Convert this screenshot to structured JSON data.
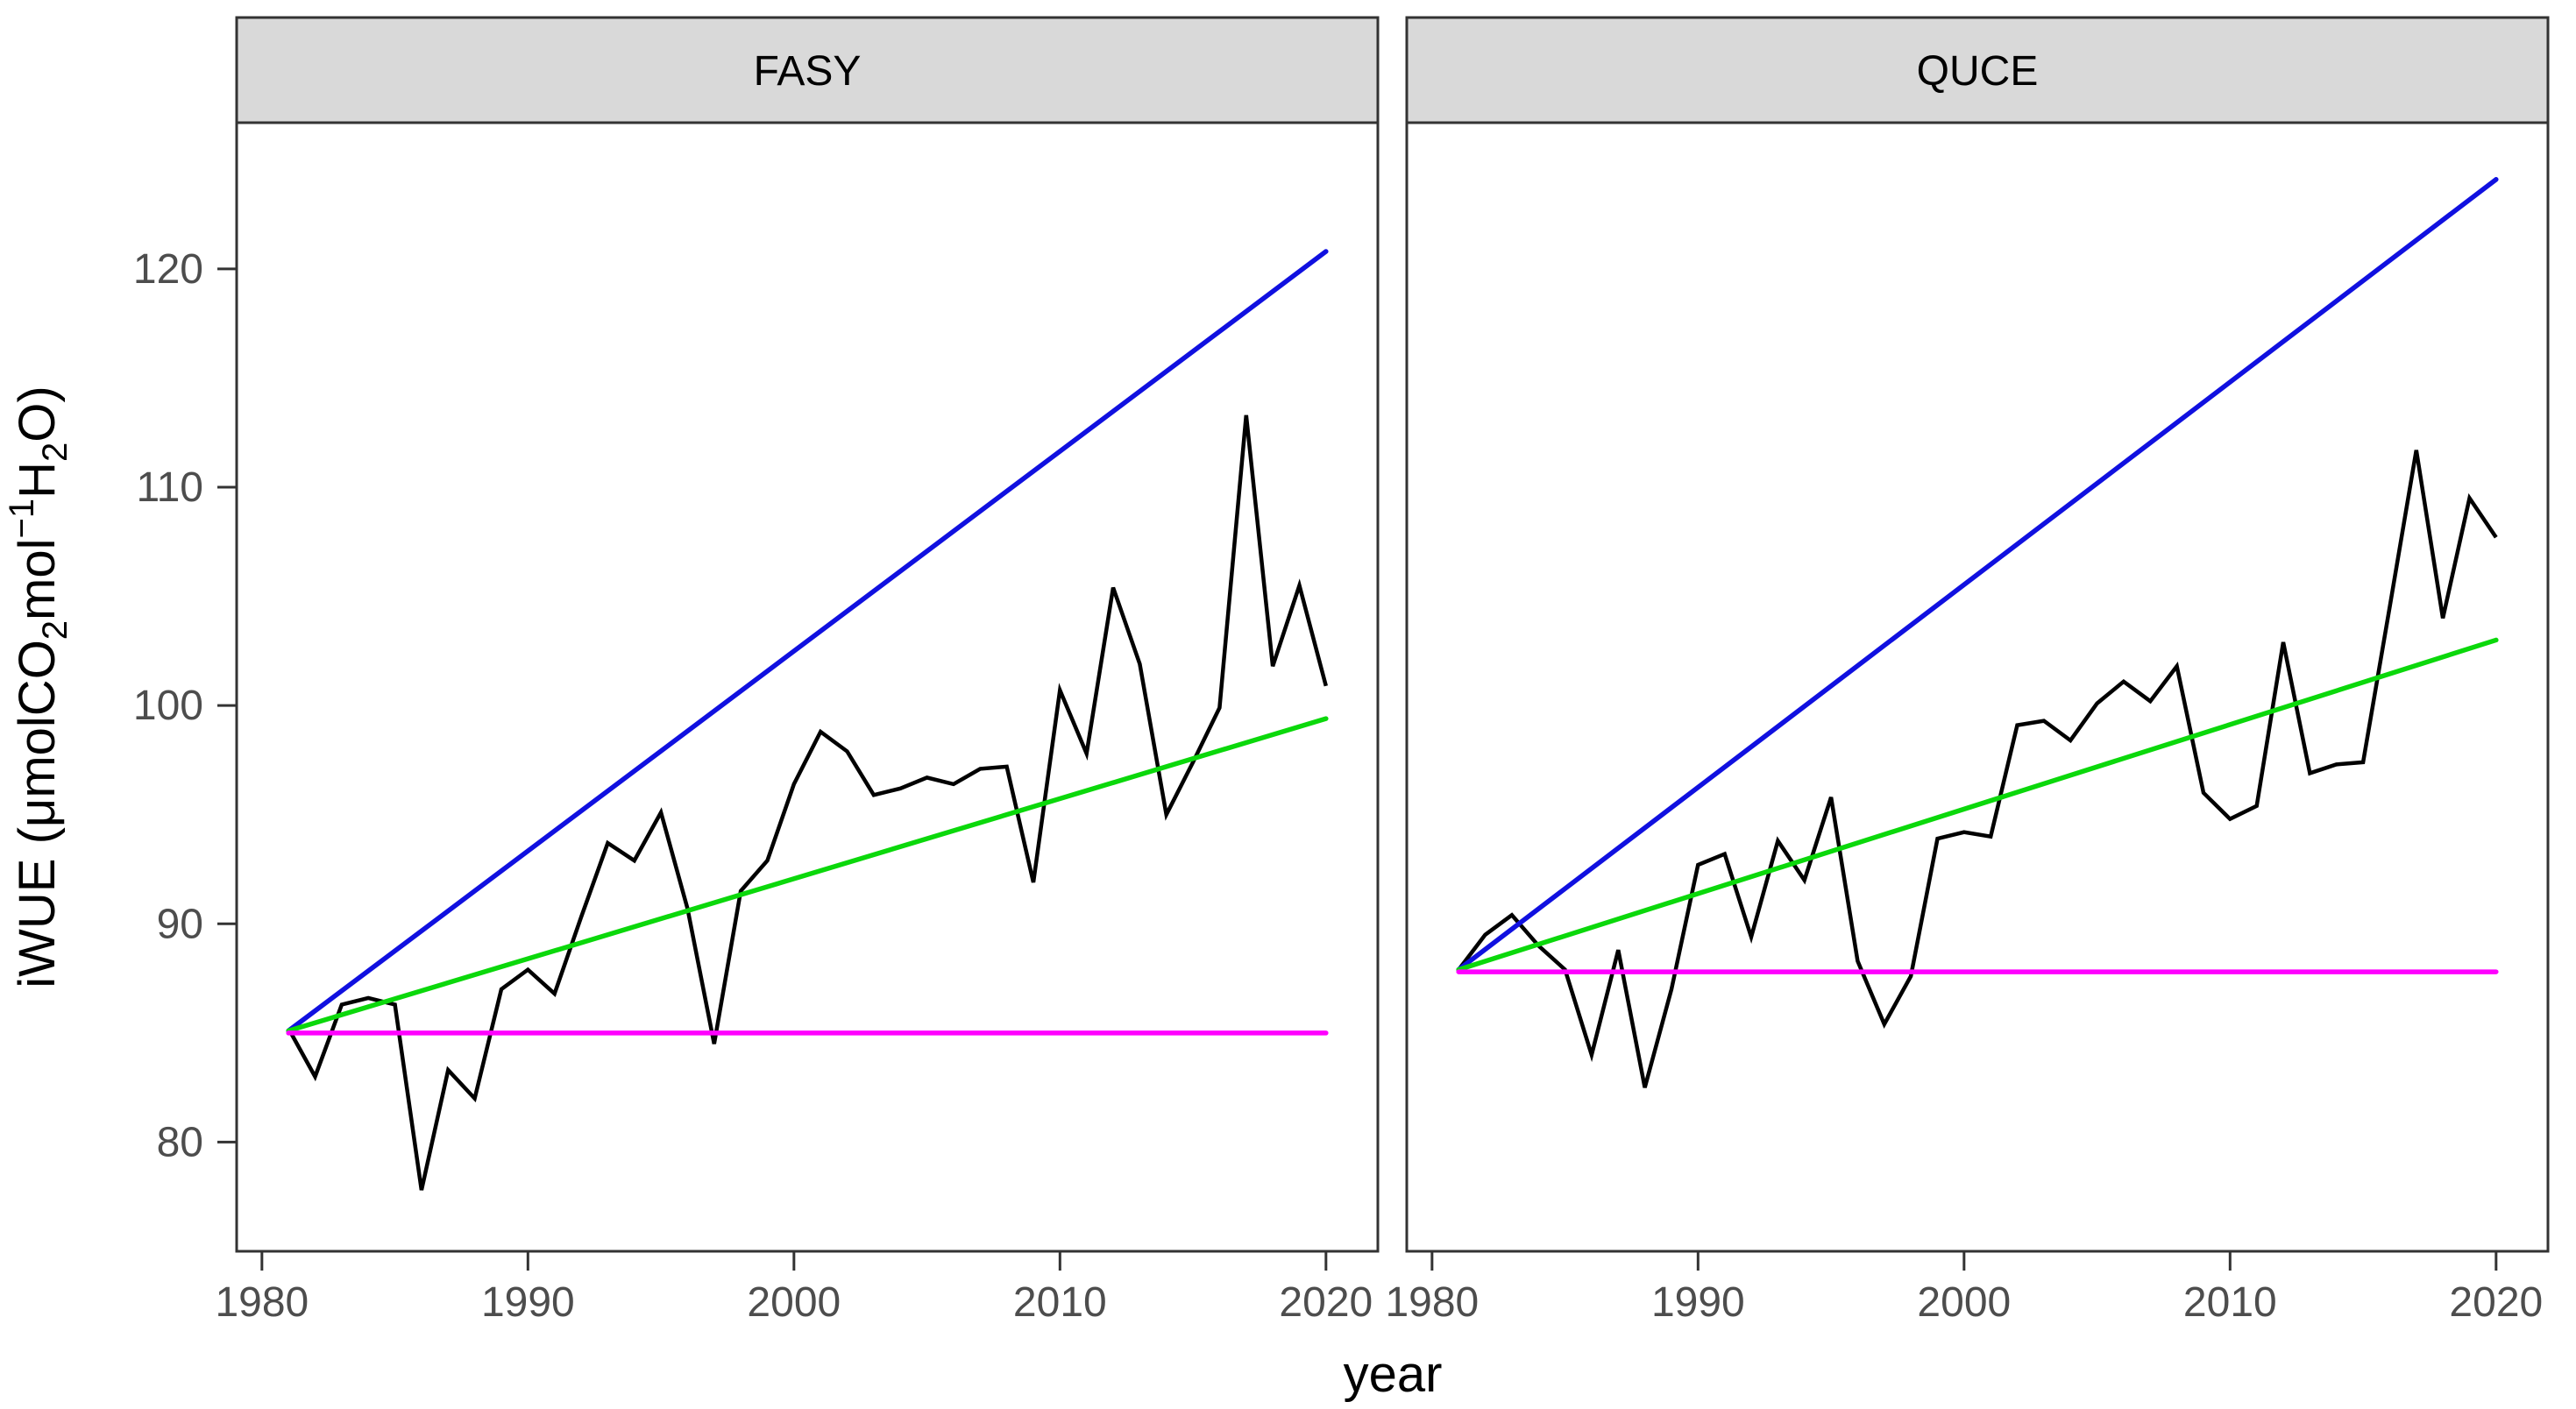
{
  "figure": {
    "x_axis_title": "year",
    "y_axis_title": "iWUE (μmolCO2mol−1H2O)",
    "y_axis_title_parts": [
      {
        "t": "iWUE ("
      },
      {
        "t": "μmolCO"
      },
      {
        "t": "2",
        "style": "sub"
      },
      {
        "t": "mol"
      },
      {
        "t": "−1",
        "style": "sup"
      },
      {
        "t": "H"
      },
      {
        "t": "2",
        "style": "sub"
      },
      {
        "t": "O)"
      }
    ],
    "colors": {
      "observed_line": "#000000",
      "blue_trend": "#1010E0",
      "green_trend": "#0BD80B",
      "magenta_reference": "#FF00FF",
      "panel_border": "#333333",
      "strip_fill": "#D9D9D9",
      "tick_text": "#4D4D4D",
      "axis_title_text": "#000000",
      "background": "#FFFFFF"
    }
  },
  "chart_data": {
    "type": "line",
    "faceted": true,
    "title": "",
    "xlabel": "year",
    "ylabel": "iWUE (μmolCO2mol−1H2O)",
    "grid": false,
    "legend_position": "none",
    "x_ticks": [
      1980,
      1990,
      2000,
      2010,
      2020
    ],
    "y_ticks": [
      80,
      90,
      100,
      110,
      120
    ],
    "x_domain": [
      1979.05,
      2021.95
    ],
    "y_domain": [
      75.0,
      126.7
    ],
    "x": [
      1981,
      1982,
      1983,
      1984,
      1985,
      1986,
      1987,
      1988,
      1989,
      1990,
      1991,
      1992,
      1993,
      1994,
      1995,
      1996,
      1997,
      1998,
      1999,
      2000,
      2001,
      2002,
      2003,
      2004,
      2005,
      2006,
      2007,
      2008,
      2009,
      2010,
      2011,
      2012,
      2013,
      2014,
      2015,
      2016,
      2017,
      2018,
      2019,
      2020
    ],
    "panels": [
      {
        "label": "FASY",
        "observed": [
          85.2,
          83.0,
          86.3,
          86.6,
          86.3,
          77.8,
          83.3,
          82.0,
          87.0,
          87.9,
          86.8,
          90.3,
          93.7,
          92.9,
          95.1,
          90.7,
          84.5,
          91.5,
          92.9,
          96.4,
          98.8,
          97.9,
          95.9,
          96.2,
          96.7,
          96.4,
          97.1,
          97.2,
          91.9,
          100.7,
          97.8,
          105.4,
          101.9,
          95.0,
          97.4,
          99.9,
          113.3,
          101.8,
          105.5,
          100.9
        ],
        "trend_lines": [
          {
            "name": "blue-upper-trend",
            "color_key": "blue_trend",
            "x": [
              1981,
              2020
            ],
            "y": [
              85.1,
              120.8
            ]
          },
          {
            "name": "green-mid-trend",
            "color_key": "green_trend",
            "x": [
              1981,
              2020
            ],
            "y": [
              85.1,
              99.4
            ]
          },
          {
            "name": "magenta-constant",
            "color_key": "magenta_reference",
            "x": [
              1981,
              2020
            ],
            "y": [
              85.0,
              85.0
            ]
          }
        ]
      },
      {
        "label": "QUCE",
        "observed": [
          87.9,
          89.5,
          90.4,
          89.0,
          87.9,
          84.0,
          88.8,
          82.5,
          87.0,
          92.7,
          93.2,
          89.4,
          93.8,
          92.0,
          95.8,
          88.3,
          85.4,
          87.6,
          93.9,
          94.2,
          94.0,
          99.1,
          99.3,
          98.4,
          100.1,
          101.1,
          100.2,
          101.8,
          96.0,
          94.8,
          95.4,
          102.9,
          96.9,
          97.3,
          97.4,
          104.5,
          111.7,
          104.0,
          109.5,
          107.7
        ],
        "trend_lines": [
          {
            "name": "blue-upper-trend",
            "color_key": "blue_trend",
            "x": [
              1981,
              2020
            ],
            "y": [
              87.9,
              124.1
            ]
          },
          {
            "name": "green-mid-trend",
            "color_key": "green_trend",
            "x": [
              1981,
              2020
            ],
            "y": [
              87.9,
              103.0
            ]
          },
          {
            "name": "magenta-constant",
            "color_key": "magenta_reference",
            "x": [
              1981,
              2020
            ],
            "y": [
              87.8,
              87.8
            ]
          }
        ]
      }
    ]
  }
}
